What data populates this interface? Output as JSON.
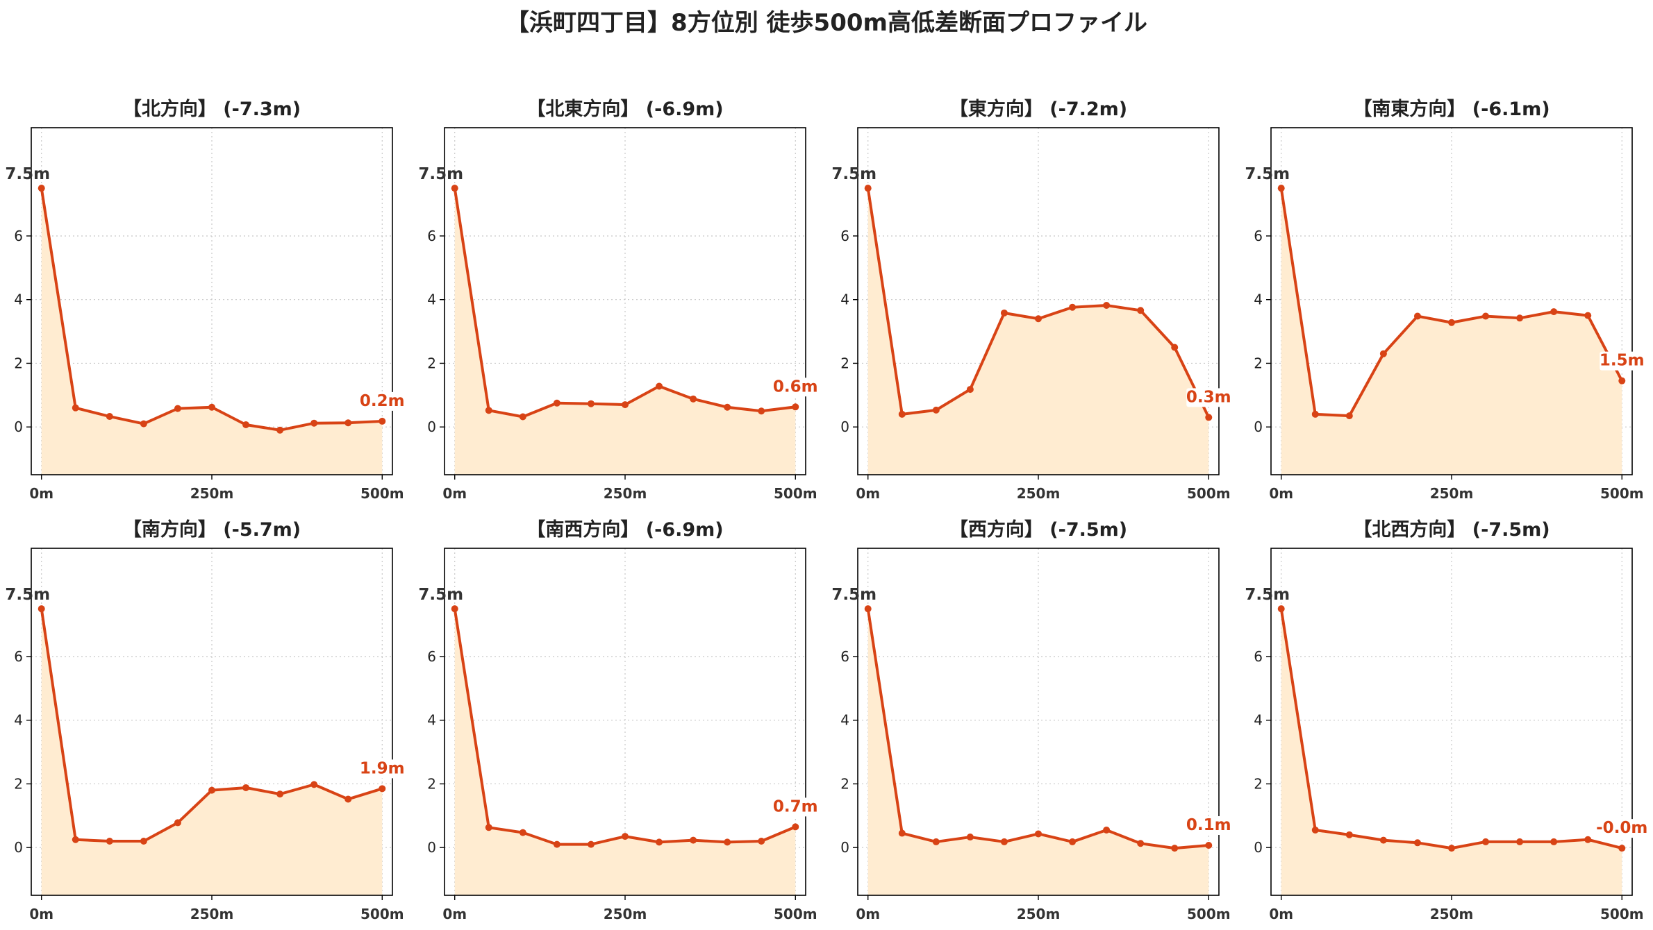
{
  "suptitle": "【浜町四丁目】8方位別 徒歩500m高低差断面プロファイル",
  "colors": {
    "line": "#d84315",
    "fill": "#ffecd1",
    "grid": "#c8c8c8"
  },
  "chart_data": [
    {
      "type": "area",
      "title": "【北方向】 (-7.3m)",
      "x": [
        0,
        50,
        100,
        150,
        200,
        250,
        300,
        350,
        400,
        450,
        500
      ],
      "values": [
        7.5,
        0.6,
        0.33,
        0.1,
        0.58,
        0.62,
        0.07,
        -0.1,
        0.12,
        0.13,
        0.18
      ],
      "start_label": "7.5m",
      "end_label": "0.2m",
      "xticks": [
        "0m",
        "250m",
        "500m"
      ],
      "xtick_values": [
        0,
        250,
        500
      ],
      "yticks": [
        0,
        2,
        4,
        6
      ],
      "ytick_labels": [
        "0",
        "2",
        "4",
        "6"
      ],
      "ylim": [
        -1.5,
        9.4
      ],
      "xlim": [
        -15,
        515
      ],
      "grid": true
    },
    {
      "type": "area",
      "title": "【北東方向】 (-6.9m)",
      "x": [
        0,
        50,
        100,
        150,
        200,
        250,
        300,
        350,
        400,
        450,
        500
      ],
      "values": [
        7.5,
        0.52,
        0.32,
        0.75,
        0.73,
        0.7,
        1.28,
        0.88,
        0.62,
        0.5,
        0.63
      ],
      "start_label": "7.5m",
      "end_label": "0.6m",
      "xticks": [
        "0m",
        "250m",
        "500m"
      ],
      "xtick_values": [
        0,
        250,
        500
      ],
      "yticks": [
        0,
        2,
        4,
        6
      ],
      "ytick_labels": [
        "0",
        "2",
        "4",
        "6"
      ],
      "ylim": [
        -1.5,
        9.4
      ],
      "xlim": [
        -15,
        515
      ],
      "grid": true
    },
    {
      "type": "area",
      "title": "【東方向】 (-7.2m)",
      "x": [
        0,
        50,
        100,
        150,
        200,
        250,
        300,
        350,
        400,
        450,
        500
      ],
      "values": [
        7.5,
        0.4,
        0.53,
        1.18,
        3.58,
        3.4,
        3.76,
        3.82,
        3.66,
        2.5,
        0.3
      ],
      "start_label": "7.5m",
      "end_label": "0.3m",
      "xticks": [
        "0m",
        "250m",
        "500m"
      ],
      "xtick_values": [
        0,
        250,
        500
      ],
      "yticks": [
        0,
        2,
        4,
        6
      ],
      "ytick_labels": [
        "0",
        "2",
        "4",
        "6"
      ],
      "ylim": [
        -1.5,
        9.4
      ],
      "xlim": [
        -15,
        515
      ],
      "grid": true
    },
    {
      "type": "area",
      "title": "【南東方向】 (-6.1m)",
      "x": [
        0,
        50,
        100,
        150,
        200,
        250,
        300,
        350,
        400,
        450,
        500
      ],
      "values": [
        7.5,
        0.4,
        0.35,
        2.3,
        3.48,
        3.28,
        3.48,
        3.42,
        3.62,
        3.5,
        1.45
      ],
      "start_label": "7.5m",
      "end_label": "1.5m",
      "xticks": [
        "0m",
        "250m",
        "500m"
      ],
      "xtick_values": [
        0,
        250,
        500
      ],
      "yticks": [
        0,
        2,
        4,
        6
      ],
      "ytick_labels": [
        "0",
        "2",
        "4",
        "6"
      ],
      "ylim": [
        -1.5,
        9.4
      ],
      "xlim": [
        -15,
        515
      ],
      "grid": true
    },
    {
      "type": "area",
      "title": "【南方向】 (-5.7m)",
      "x": [
        0,
        50,
        100,
        150,
        200,
        250,
        300,
        350,
        400,
        450,
        500
      ],
      "values": [
        7.5,
        0.25,
        0.2,
        0.2,
        0.78,
        1.8,
        1.88,
        1.68,
        1.98,
        1.52,
        1.85
      ],
      "start_label": "7.5m",
      "end_label": "1.9m",
      "xticks": [
        "0m",
        "250m",
        "500m"
      ],
      "xtick_values": [
        0,
        250,
        500
      ],
      "yticks": [
        0,
        2,
        4,
        6
      ],
      "ytick_labels": [
        "0",
        "2",
        "4",
        "6"
      ],
      "ylim": [
        -1.5,
        9.4
      ],
      "xlim": [
        -15,
        515
      ],
      "grid": true
    },
    {
      "type": "area",
      "title": "【南西方向】 (-6.9m)",
      "x": [
        0,
        50,
        100,
        150,
        200,
        250,
        300,
        350,
        400,
        450,
        500
      ],
      "values": [
        7.5,
        0.63,
        0.47,
        0.1,
        0.1,
        0.35,
        0.17,
        0.23,
        0.17,
        0.2,
        0.65
      ],
      "start_label": "7.5m",
      "end_label": "0.7m",
      "xticks": [
        "0m",
        "250m",
        "500m"
      ],
      "xtick_values": [
        0,
        250,
        500
      ],
      "yticks": [
        0,
        2,
        4,
        6
      ],
      "ytick_labels": [
        "0",
        "2",
        "4",
        "6"
      ],
      "ylim": [
        -1.5,
        9.4
      ],
      "xlim": [
        -15,
        515
      ],
      "grid": true
    },
    {
      "type": "area",
      "title": "【西方向】 (-7.5m)",
      "x": [
        0,
        50,
        100,
        150,
        200,
        250,
        300,
        350,
        400,
        450,
        500
      ],
      "values": [
        7.5,
        0.45,
        0.18,
        0.33,
        0.18,
        0.43,
        0.18,
        0.55,
        0.13,
        -0.02,
        0.07
      ],
      "start_label": "7.5m",
      "end_label": "0.1m",
      "xticks": [
        "0m",
        "250m",
        "500m"
      ],
      "xtick_values": [
        0,
        250,
        500
      ],
      "yticks": [
        0,
        2,
        4,
        6
      ],
      "ytick_labels": [
        "0",
        "2",
        "4",
        "6"
      ],
      "ylim": [
        -1.5,
        9.4
      ],
      "xlim": [
        -15,
        515
      ],
      "grid": true
    },
    {
      "type": "area",
      "title": "【北西方向】 (-7.5m)",
      "x": [
        0,
        50,
        100,
        150,
        200,
        250,
        300,
        350,
        400,
        450,
        500
      ],
      "values": [
        7.5,
        0.55,
        0.4,
        0.23,
        0.15,
        -0.02,
        0.18,
        0.18,
        0.18,
        0.25,
        -0.02
      ],
      "start_label": "7.5m",
      "end_label": "-0.0m",
      "xticks": [
        "0m",
        "250m",
        "500m"
      ],
      "xtick_values": [
        0,
        250,
        500
      ],
      "yticks": [
        0,
        2,
        4,
        6
      ],
      "ytick_labels": [
        "0",
        "2",
        "4",
        "6"
      ],
      "ylim": [
        -1.5,
        9.4
      ],
      "xlim": [
        -15,
        515
      ],
      "grid": true
    }
  ]
}
